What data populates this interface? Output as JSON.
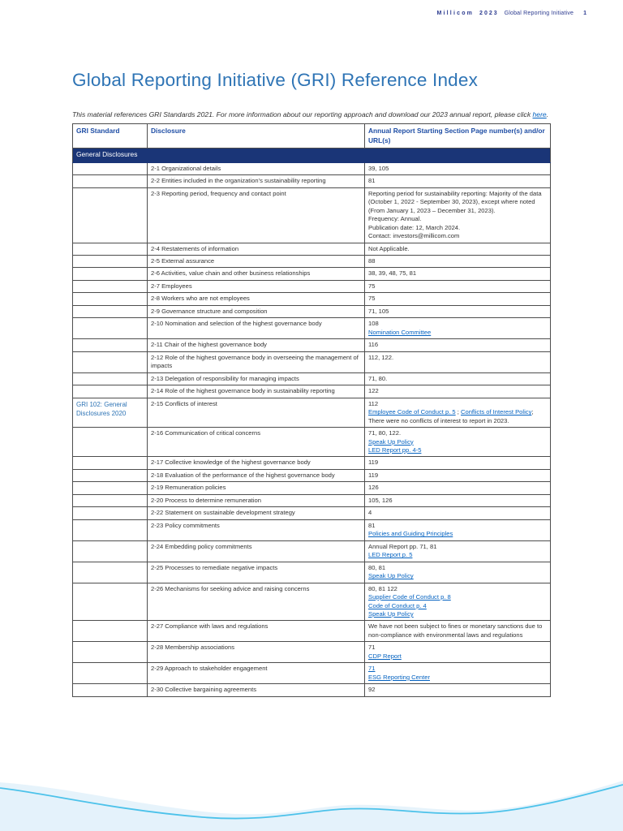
{
  "page_header": {
    "brand": "Millicom",
    "year": "2023",
    "doc": "Global Reporting Initiative",
    "page_num": "1"
  },
  "title": "Global Reporting Initiative (GRI) Reference Index",
  "intro": {
    "text_before": "This material references GRI Standards 2021. For more information about our reporting approach and download our 2023 annual report, please click ",
    "link_text": "here",
    "text_after": "."
  },
  "table": {
    "columns": [
      "GRI Standard",
      "Disclosure",
      "Annual Report Starting Section Page number(s) and/or URL(s)"
    ],
    "section": "General Disclosures",
    "rows": [
      {
        "standard": "",
        "disclosure": "2-1 Organizational details",
        "lines": [
          [
            {
              "t": "text",
              "v": "39, 105"
            }
          ]
        ]
      },
      {
        "standard": "",
        "disclosure": "2-2 Entities included in the organization’s sustainability reporting",
        "lines": [
          [
            {
              "t": "text",
              "v": "81"
            }
          ]
        ]
      },
      {
        "standard": "",
        "disclosure": "2-3 Reporting period, frequency and contact point",
        "lines": [
          [
            {
              "t": "text",
              "v": "Reporting period for sustainability reporting: Majority of the data (October 1, 2022 - September 30, 2023), except where noted (From January 1, 2023 – December 31, 2023)."
            }
          ],
          [
            {
              "t": "text",
              "v": "Frequency: Annual."
            }
          ],
          [
            {
              "t": "text",
              "v": "Publication date: 12, March 2024."
            }
          ],
          [
            {
              "t": "text",
              "v": "Contact: investors@millicom.com"
            }
          ]
        ]
      },
      {
        "standard": "",
        "disclosure": "2-4 Restatements of information",
        "lines": [
          [
            {
              "t": "text",
              "v": "Not Applicable."
            }
          ]
        ]
      },
      {
        "standard": "",
        "disclosure": "2-5 External assurance",
        "lines": [
          [
            {
              "t": "text",
              "v": "88"
            }
          ]
        ]
      },
      {
        "standard": "",
        "disclosure": "2-6 Activities, value chain and other business relationships",
        "lines": [
          [
            {
              "t": "text",
              "v": "38, 39, 48, 75, 81"
            }
          ]
        ]
      },
      {
        "standard": "",
        "disclosure": "2-7 Employees",
        "lines": [
          [
            {
              "t": "text",
              "v": "75"
            }
          ]
        ]
      },
      {
        "standard": "",
        "disclosure": "2-8 Workers who are not employees",
        "lines": [
          [
            {
              "t": "text",
              "v": "75"
            }
          ]
        ]
      },
      {
        "standard": "",
        "disclosure": "2-9 Governance structure and composition",
        "lines": [
          [
            {
              "t": "text",
              "v": "71, 105"
            }
          ]
        ]
      },
      {
        "standard": "",
        "disclosure": "2-10 Nomination and selection of the highest governance body",
        "lines": [
          [
            {
              "t": "text",
              "v": "108"
            }
          ],
          [
            {
              "t": "link",
              "v": "Nomination Committee"
            }
          ]
        ]
      },
      {
        "standard": "",
        "disclosure": "2-11 Chair of the highest governance body",
        "lines": [
          [
            {
              "t": "text",
              "v": "116"
            }
          ]
        ]
      },
      {
        "standard": "",
        "disclosure": "2-12 Role of the highest governance body in overseeing the management of impacts",
        "lines": [
          [
            {
              "t": "text",
              "v": "112, 122."
            }
          ]
        ]
      },
      {
        "standard": "",
        "disclosure": "2-13 Delegation of responsibility for managing impacts",
        "lines": [
          [
            {
              "t": "text",
              "v": "71, 80."
            }
          ]
        ]
      },
      {
        "standard": "",
        "disclosure": "2-14 Role of the highest governance body in sustainability reporting",
        "lines": [
          [
            {
              "t": "text",
              "v": "122"
            }
          ]
        ]
      },
      {
        "standard": "GRI 102: General Disclosures 2020",
        "disclosure": "2-15 Conflicts of interest",
        "lines": [
          [
            {
              "t": "text",
              "v": "112"
            }
          ],
          [
            {
              "t": "link",
              "v": "Employee Code of Conduct p. 5"
            },
            {
              "t": "text",
              "v": " ; "
            },
            {
              "t": "link",
              "v": "Conflicts of Interest Policy"
            },
            {
              "t": "text",
              "v": ";"
            }
          ],
          [
            {
              "t": "text",
              "v": "There were no conflicts of interest to report in 2023."
            }
          ]
        ]
      },
      {
        "standard": "",
        "disclosure": "2-16 Communication of critical concerns",
        "lines": [
          [
            {
              "t": "text",
              "v": "71, 80, 122."
            }
          ],
          [
            {
              "t": "link",
              "v": "Speak Up Policy"
            }
          ],
          [
            {
              "t": "link",
              "v": "LED Report pp. 4-5"
            }
          ]
        ]
      },
      {
        "standard": "",
        "disclosure": "2-17 Collective knowledge of the highest governance body",
        "lines": [
          [
            {
              "t": "text",
              "v": "119"
            }
          ]
        ]
      },
      {
        "standard": "",
        "disclosure": "2-18 Evaluation of the performance of the highest governance body",
        "lines": [
          [
            {
              "t": "text",
              "v": "119"
            }
          ]
        ]
      },
      {
        "standard": "",
        "disclosure": "2-19 Remuneration policies",
        "lines": [
          [
            {
              "t": "text",
              "v": "126"
            }
          ]
        ]
      },
      {
        "standard": "",
        "disclosure": "2-20 Process to determine remuneration",
        "lines": [
          [
            {
              "t": "text",
              "v": "105, 126"
            }
          ]
        ]
      },
      {
        "standard": "",
        "disclosure": "2-22 Statement on sustainable development strategy",
        "lines": [
          [
            {
              "t": "text",
              "v": "4"
            }
          ]
        ]
      },
      {
        "standard": "",
        "disclosure": "2-23 Policy commitments",
        "lines": [
          [
            {
              "t": "text",
              "v": "81"
            }
          ],
          [
            {
              "t": "link",
              "v": "Policies and Guiding Principles"
            }
          ]
        ]
      },
      {
        "standard": "",
        "disclosure": "2-24 Embedding policy commitments",
        "lines": [
          [
            {
              "t": "text",
              "v": "Annual Report pp. 71, 81"
            }
          ],
          [
            {
              "t": "link",
              "v": "LED Report p. 5"
            }
          ]
        ]
      },
      {
        "standard": "",
        "disclosure": "2-25 Processes to remediate negative impacts",
        "lines": [
          [
            {
              "t": "text",
              "v": "80, 81"
            }
          ],
          [
            {
              "t": "link",
              "v": "Speak Up Policy"
            }
          ]
        ]
      },
      {
        "standard": "",
        "disclosure": "2-26 Mechanisms for seeking advice and raising concerns",
        "lines": [
          [
            {
              "t": "text",
              "v": "80, 81 122"
            }
          ],
          [
            {
              "t": "link",
              "v": "Supplier Code of Conduct p. 8"
            }
          ],
          [
            {
              "t": "link",
              "v": "Code of Conduct p. 4"
            }
          ],
          [
            {
              "t": "link",
              "v": "Speak Up Policy"
            }
          ]
        ]
      },
      {
        "standard": "",
        "disclosure": "2-27 Compliance with laws and regulations",
        "lines": [
          [
            {
              "t": "text",
              "v": "We have not been subject to fines or monetary sanctions due to non-compliance with environmental laws and regulations"
            }
          ]
        ]
      },
      {
        "standard": "",
        "disclosure": "2-28 Membership associations",
        "lines": [
          [
            {
              "t": "text",
              "v": "71"
            }
          ],
          [
            {
              "t": "link",
              "v": "CDP Report"
            }
          ]
        ]
      },
      {
        "standard": "",
        "disclosure": "2-29 Approach to stakeholder engagement",
        "lines": [
          [
            {
              "t": "link",
              "v": "71"
            }
          ],
          [
            {
              "t": "link",
              "v": "ESG Reporting Center"
            }
          ]
        ]
      },
      {
        "standard": "",
        "disclosure": "2-30 Collective bargaining agreements",
        "lines": [
          [
            {
              "t": "text",
              "v": "92"
            }
          ]
        ]
      }
    ]
  },
  "colors": {
    "title_blue": "#2e74b5",
    "table_header_blue": "#1f4ea5",
    "section_band_navy": "#1a3577",
    "link_blue": "#0563c1",
    "header_navy": "#2b3a8f",
    "wave_line": "#4cc2ea",
    "wave_fill": "#e4f2fb",
    "wave_soft": "#d9edf9"
  }
}
